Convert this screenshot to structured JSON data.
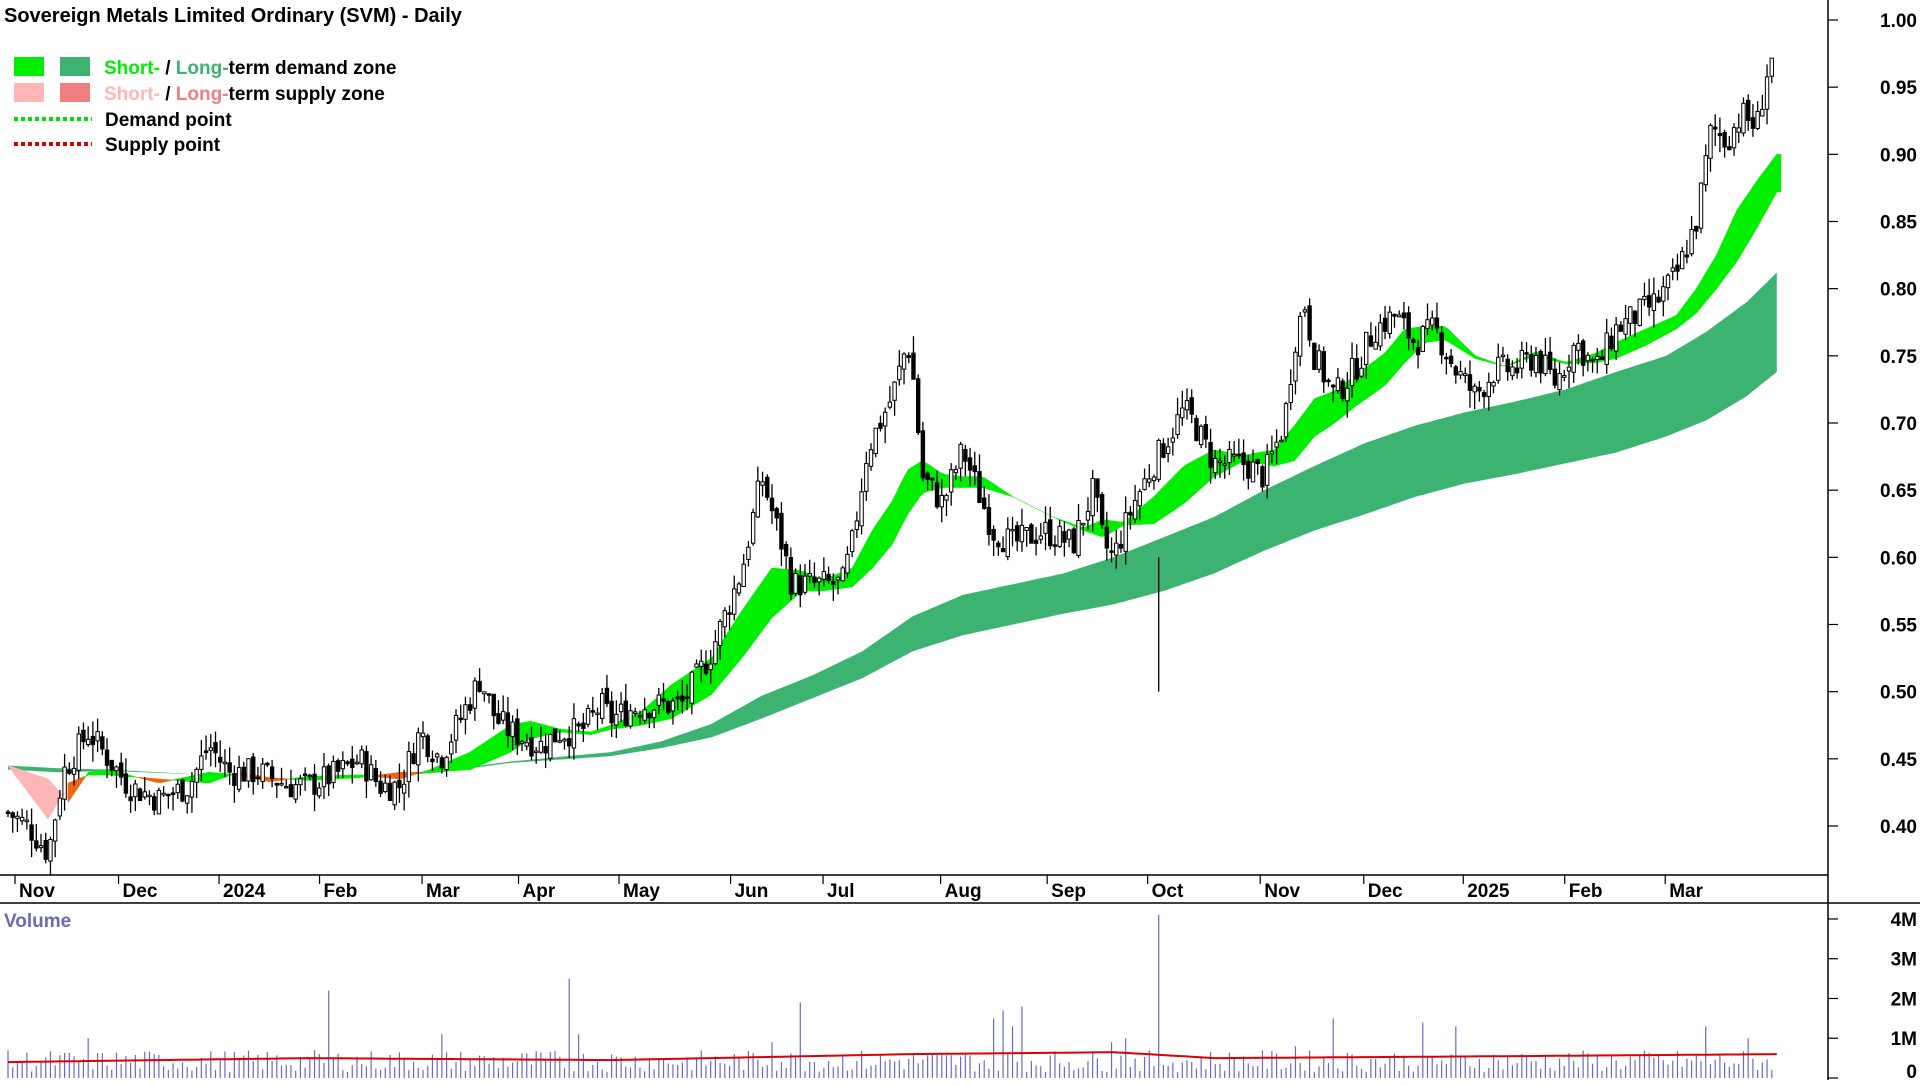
{
  "title": "Sovereign Metals Limited Ordinary (SVM) - Daily",
  "legend": [
    {
      "short_label": "Short-",
      "sep": " / ",
      "long_label": "Long-",
      "rest": "term demand zone",
      "short_color": "#00ee00",
      "long_color": "#3cb371"
    },
    {
      "short_label": "Short-",
      "sep": " / ",
      "long_label": "Long-",
      "rest": "term supply zone",
      "short_color": "#ffb6b6",
      "long_color": "#f08080"
    },
    {
      "label": "Demand point",
      "color": "#00dd00"
    },
    {
      "label": "Supply point",
      "color": "#dd0000"
    }
  ],
  "volume_label": "Volume",
  "colors": {
    "candle": "#000000",
    "short_demand": "#00ee00",
    "long_demand": "#3cb371",
    "short_supply": "#ffb6b6",
    "long_supply": "#f08080",
    "cross_zone": "#ee6611",
    "volume_bar": "#6a6ac8",
    "volume_avg": "#dd0000",
    "volume_text": "#6b6bb5"
  },
  "chart_data": {
    "type": "candlestick",
    "y_ticks": [
      "1.00",
      "0.95",
      "0.90",
      "0.85",
      "0.80",
      "0.75",
      "0.70",
      "0.65",
      "0.60",
      "0.55",
      "0.50",
      "0.45",
      "0.40"
    ],
    "ylim": [
      0.355,
      1.005
    ],
    "x_labels": [
      "Nov",
      "Dec",
      "2024",
      "Feb",
      "Mar",
      "Apr",
      "May",
      "Jun",
      "Jul",
      "Aug",
      "Sep",
      "Oct",
      "Nov",
      "Dec",
      "2025",
      "Feb",
      "Mar"
    ],
    "x_label_positions": [
      0.07,
      1.1,
      2.1,
      3.1,
      4.12,
      5.08,
      6.08,
      7.19,
      8.11,
      9.28,
      10.34,
      11.34,
      12.46,
      13.49,
      14.48,
      15.49,
      16.49
    ],
    "n_months": 17.7,
    "close_anchors": [
      [
        0,
        0.41
      ],
      [
        0.2,
        0.4
      ],
      [
        0.4,
        0.38
      ],
      [
        0.55,
        0.44
      ],
      [
        0.8,
        0.47
      ],
      [
        1.0,
        0.45
      ],
      [
        1.2,
        0.43
      ],
      [
        1.5,
        0.42
      ],
      [
        1.8,
        0.43
      ],
      [
        2.0,
        0.46
      ],
      [
        2.2,
        0.44
      ],
      [
        2.5,
        0.44
      ],
      [
        2.8,
        0.43
      ],
      [
        3.0,
        0.43
      ],
      [
        3.3,
        0.44
      ],
      [
        3.5,
        0.45
      ],
      [
        3.7,
        0.43
      ],
      [
        3.9,
        0.43
      ],
      [
        4.1,
        0.47
      ],
      [
        4.3,
        0.45
      ],
      [
        4.5,
        0.48
      ],
      [
        4.7,
        0.51
      ],
      [
        4.85,
        0.48
      ],
      [
        5.0,
        0.47
      ],
      [
        5.3,
        0.46
      ],
      [
        5.5,
        0.47
      ],
      [
        5.7,
        0.47
      ],
      [
        5.9,
        0.49
      ],
      [
        6.0,
        0.48
      ],
      [
        6.3,
        0.49
      ],
      [
        6.7,
        0.49
      ],
      [
        7.0,
        0.53
      ],
      [
        7.3,
        0.59
      ],
      [
        7.5,
        0.66
      ],
      [
        7.7,
        0.61
      ],
      [
        7.8,
        0.58
      ],
      [
        8.0,
        0.58
      ],
      [
        8.3,
        0.58
      ],
      [
        8.4,
        0.61
      ],
      [
        8.55,
        0.68
      ],
      [
        8.8,
        0.72
      ],
      [
        8.95,
        0.76
      ],
      [
        9.0,
        0.74
      ],
      [
        9.1,
        0.66
      ],
      [
        9.3,
        0.64
      ],
      [
        9.5,
        0.68
      ],
      [
        9.6,
        0.66
      ],
      [
        9.8,
        0.62
      ],
      [
        10.0,
        0.61
      ],
      [
        10.3,
        0.62
      ],
      [
        10.6,
        0.61
      ],
      [
        10.8,
        0.65
      ],
      [
        10.9,
        0.61
      ],
      [
        11.0,
        0.6
      ],
      [
        11.2,
        0.64
      ],
      [
        11.4,
        0.67
      ],
      [
        11.7,
        0.71
      ],
      [
        11.8,
        0.7
      ],
      [
        12.0,
        0.67
      ],
      [
        12.3,
        0.67
      ],
      [
        12.5,
        0.66
      ],
      [
        12.7,
        0.7
      ],
      [
        12.8,
        0.76
      ],
      [
        12.9,
        0.79
      ],
      [
        13.0,
        0.75
      ],
      [
        13.2,
        0.72
      ],
      [
        13.4,
        0.74
      ],
      [
        13.6,
        0.77
      ],
      [
        13.8,
        0.78
      ],
      [
        14.0,
        0.76
      ],
      [
        14.2,
        0.77
      ],
      [
        14.4,
        0.74
      ],
      [
        14.6,
        0.72
      ],
      [
        14.8,
        0.74
      ],
      [
        15.0,
        0.74
      ],
      [
        15.2,
        0.75
      ],
      [
        15.4,
        0.73
      ],
      [
        15.6,
        0.76
      ],
      [
        15.8,
        0.74
      ],
      [
        16.0,
        0.77
      ],
      [
        16.2,
        0.78
      ],
      [
        16.4,
        0.79
      ],
      [
        16.6,
        0.81
      ],
      [
        16.8,
        0.85
      ],
      [
        16.95,
        0.92
      ],
      [
        17.1,
        0.91
      ],
      [
        17.25,
        0.93
      ],
      [
        17.4,
        0.92
      ],
      [
        17.5,
        0.96
      ],
      [
        17.55,
        0.97
      ]
    ],
    "short_zone": [
      [
        0,
        0.445,
        0.445
      ],
      [
        0.4,
        0.435,
        0.405
      ],
      [
        0.6,
        0.418,
        0.432
      ],
      [
        0.8,
        0.44,
        0.438
      ],
      [
        1.0,
        0.442,
        0.438
      ],
      [
        1.5,
        0.432,
        0.435
      ],
      [
        2.0,
        0.44,
        0.432
      ],
      [
        2.3,
        0.438,
        0.44
      ],
      [
        2.6,
        0.433,
        0.436
      ],
      [
        3.0,
        0.437,
        0.434
      ],
      [
        3.5,
        0.438,
        0.436
      ],
      [
        3.9,
        0.435,
        0.44
      ],
      [
        4.2,
        0.442,
        0.44
      ],
      [
        4.6,
        0.455,
        0.442
      ],
      [
        5.0,
        0.475,
        0.455
      ],
      [
        5.2,
        0.478,
        0.465
      ],
      [
        5.5,
        0.472,
        0.47
      ],
      [
        5.8,
        0.47,
        0.468
      ],
      [
        6.0,
        0.475,
        0.472
      ],
      [
        6.3,
        0.485,
        0.475
      ],
      [
        6.6,
        0.505,
        0.48
      ],
      [
        7.0,
        0.525,
        0.498
      ],
      [
        7.3,
        0.56,
        0.525
      ],
      [
        7.6,
        0.592,
        0.555
      ],
      [
        7.9,
        0.59,
        0.575
      ],
      [
        8.1,
        0.583,
        0.575
      ],
      [
        8.4,
        0.592,
        0.578
      ],
      [
        8.6,
        0.62,
        0.592
      ],
      [
        8.8,
        0.642,
        0.61
      ],
      [
        8.95,
        0.665,
        0.632
      ],
      [
        9.1,
        0.672,
        0.648
      ],
      [
        9.3,
        0.662,
        0.652
      ],
      [
        9.5,
        0.66,
        0.652
      ],
      [
        9.7,
        0.66,
        0.652
      ],
      [
        10.0,
        0.645,
        0.645
      ],
      [
        10.4,
        0.63,
        0.63
      ],
      [
        10.7,
        0.622,
        0.62
      ],
      [
        10.9,
        0.628,
        0.615
      ],
      [
        11.1,
        0.626,
        0.624
      ],
      [
        11.4,
        0.645,
        0.625
      ],
      [
        11.7,
        0.668,
        0.64
      ],
      [
        12.0,
        0.68,
        0.66
      ],
      [
        12.3,
        0.676,
        0.672
      ],
      [
        12.6,
        0.68,
        0.668
      ],
      [
        12.8,
        0.698,
        0.672
      ],
      [
        13.0,
        0.718,
        0.69
      ],
      [
        13.2,
        0.724,
        0.7
      ],
      [
        13.4,
        0.735,
        0.712
      ],
      [
        13.7,
        0.752,
        0.728
      ],
      [
        13.9,
        0.77,
        0.745
      ],
      [
        14.1,
        0.772,
        0.76
      ],
      [
        14.3,
        0.772,
        0.762
      ],
      [
        14.6,
        0.75,
        0.748
      ],
      [
        14.9,
        0.742,
        0.742
      ],
      [
        15.2,
        0.753,
        0.75
      ],
      [
        15.5,
        0.745,
        0.744
      ],
      [
        15.8,
        0.752,
        0.745
      ],
      [
        16.0,
        0.76,
        0.748
      ],
      [
        16.3,
        0.77,
        0.758
      ],
      [
        16.6,
        0.78,
        0.77
      ],
      [
        16.8,
        0.8,
        0.782
      ],
      [
        17.0,
        0.825,
        0.8
      ],
      [
        17.2,
        0.858,
        0.82
      ],
      [
        17.4,
        0.88,
        0.845
      ],
      [
        17.6,
        0.9,
        0.872
      ]
    ],
    "long_zone": [
      [
        0,
        0.445,
        0.442
      ],
      [
        0.5,
        0.443,
        0.44
      ],
      [
        1.0,
        0.442,
        0.441
      ],
      [
        2.0,
        0.438,
        0.438
      ],
      [
        3.0,
        0.436,
        0.436
      ],
      [
        3.8,
        0.438,
        0.437
      ],
      [
        4.3,
        0.441,
        0.44
      ],
      [
        5.0,
        0.448,
        0.447
      ],
      [
        6.0,
        0.455,
        0.452
      ],
      [
        6.5,
        0.463,
        0.458
      ],
      [
        7.0,
        0.476,
        0.466
      ],
      [
        7.5,
        0.497,
        0.48
      ],
      [
        8.0,
        0.512,
        0.495
      ],
      [
        8.5,
        0.53,
        0.51
      ],
      [
        9.0,
        0.556,
        0.53
      ],
      [
        9.5,
        0.572,
        0.542
      ],
      [
        10.0,
        0.58,
        0.55
      ],
      [
        10.5,
        0.588,
        0.558
      ],
      [
        11.0,
        0.6,
        0.565
      ],
      [
        11.5,
        0.615,
        0.575
      ],
      [
        12.0,
        0.63,
        0.588
      ],
      [
        12.5,
        0.65,
        0.605
      ],
      [
        13.0,
        0.668,
        0.62
      ],
      [
        13.5,
        0.685,
        0.632
      ],
      [
        14.0,
        0.698,
        0.645
      ],
      [
        14.5,
        0.708,
        0.655
      ],
      [
        15.0,
        0.716,
        0.662
      ],
      [
        15.5,
        0.725,
        0.67
      ],
      [
        16.0,
        0.738,
        0.678
      ],
      [
        16.5,
        0.75,
        0.69
      ],
      [
        16.9,
        0.768,
        0.702
      ],
      [
        17.3,
        0.79,
        0.72
      ],
      [
        17.6,
        0.812,
        0.738
      ]
    ],
    "volume_ticks": [
      "4M",
      "3M",
      "2M",
      "1M",
      "0"
    ],
    "volume_ylim": [
      0,
      4.2
    ],
    "volume_spikes": [
      [
        0.8,
        1.0
      ],
      [
        3.2,
        2.2
      ],
      [
        4.3,
        1.1
      ],
      [
        5.6,
        2.5
      ],
      [
        5.7,
        1.1
      ],
      [
        7.6,
        0.9
      ],
      [
        7.9,
        1.9
      ],
      [
        9.8,
        1.5
      ],
      [
        9.9,
        1.7
      ],
      [
        10.0,
        1.3
      ],
      [
        10.1,
        1.8
      ],
      [
        11.0,
        0.9
      ],
      [
        11.1,
        1.0
      ],
      [
        11.45,
        4.1
      ],
      [
        12.8,
        0.8
      ],
      [
        13.2,
        1.5
      ],
      [
        14.1,
        1.4
      ],
      [
        14.4,
        1.3
      ],
      [
        16.9,
        1.3
      ],
      [
        17.3,
        1.0
      ]
    ],
    "volume_avg": [
      [
        0,
        0.4
      ],
      [
        3.0,
        0.5
      ],
      [
        6.0,
        0.45
      ],
      [
        9.0,
        0.6
      ],
      [
        11.0,
        0.65
      ],
      [
        12.0,
        0.5
      ],
      [
        15.0,
        0.55
      ],
      [
        17.6,
        0.6
      ]
    ]
  }
}
